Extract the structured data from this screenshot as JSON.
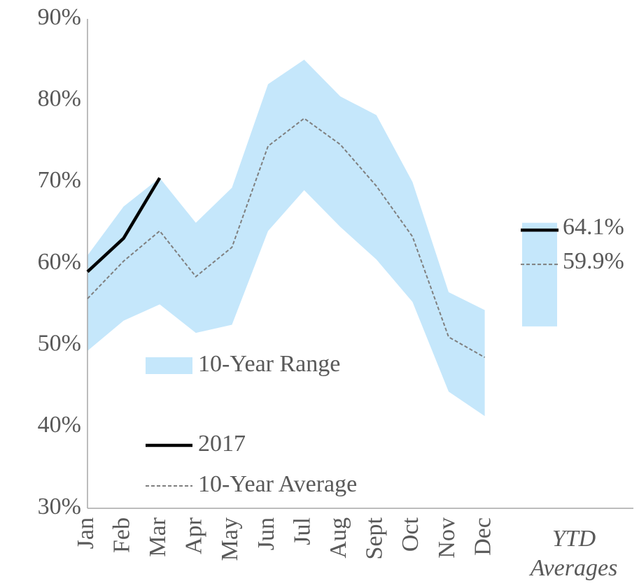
{
  "chart_data": {
    "type": "line",
    "categories": [
      "Jan",
      "Feb",
      "Mar",
      "Apr",
      "May",
      "Jun",
      "Jul",
      "Aug",
      "Sept",
      "Oct",
      "Nov",
      "Dec"
    ],
    "ylim": [
      30,
      90
    ],
    "yticks": [
      {
        "value": 30,
        "label": "30%"
      },
      {
        "value": 40,
        "label": "40%"
      },
      {
        "value": 50,
        "label": "50%"
      },
      {
        "value": 60,
        "label": "60%"
      },
      {
        "value": 70,
        "label": "70%"
      },
      {
        "value": 80,
        "label": "80%"
      },
      {
        "value": 90,
        "label": "90%"
      }
    ],
    "range": {
      "name": "10-Year Range",
      "color": "#c5e7fb",
      "upper": [
        61,
        67,
        70.5,
        65,
        69.3,
        82,
        85,
        80.5,
        78.2,
        70,
        56.5,
        54.3
      ],
      "lower": [
        49.3,
        53,
        55,
        51.5,
        52.5,
        64,
        69,
        64.5,
        60.5,
        55.3,
        44.3,
        41.3
      ]
    },
    "series": [
      {
        "name": "2017",
        "color": "#000000",
        "values": [
          59,
          63.1,
          70.5,
          null,
          null,
          null,
          null,
          null,
          null,
          null,
          null,
          null
        ]
      },
      {
        "name": "10-Year Average",
        "color": "#7f7f7f",
        "values": [
          55.7,
          60.3,
          64,
          58.4,
          62,
          74.4,
          77.8,
          74.6,
          69.5,
          63.3,
          51,
          48.5
        ]
      }
    ],
    "ytd": {
      "label": "YTD Averages",
      "range_low": 52.3,
      "range_high": 65,
      "values": [
        64.1,
        59.9
      ],
      "value_labels": [
        "64.1%",
        "59.9%"
      ]
    }
  }
}
